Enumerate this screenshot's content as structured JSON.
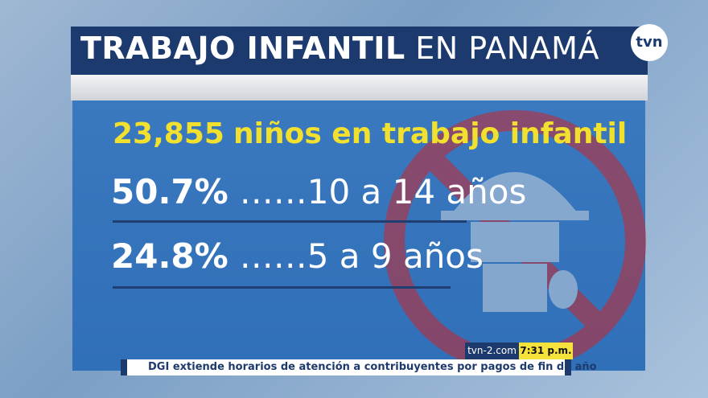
{
  "header": {
    "title_bold": "TRABAJO INFANTIL",
    "title_light": "EN PANAMÁ",
    "logo": "tvn"
  },
  "headline": {
    "number": "23,855",
    "text": "niños en trabajo infantil"
  },
  "rows": [
    {
      "percent": "50.7%",
      "dots": "……",
      "range": "10 a 14 años"
    },
    {
      "percent": "24.8%",
      "dots": "……",
      "range": "5 a 9 años"
    }
  ],
  "ticker": {
    "site": "tvn-2.com",
    "time": "7:31 p.m.",
    "text": "DGI extiende horarios de atención a contribuyentes  por pagos de fin de año"
  }
}
